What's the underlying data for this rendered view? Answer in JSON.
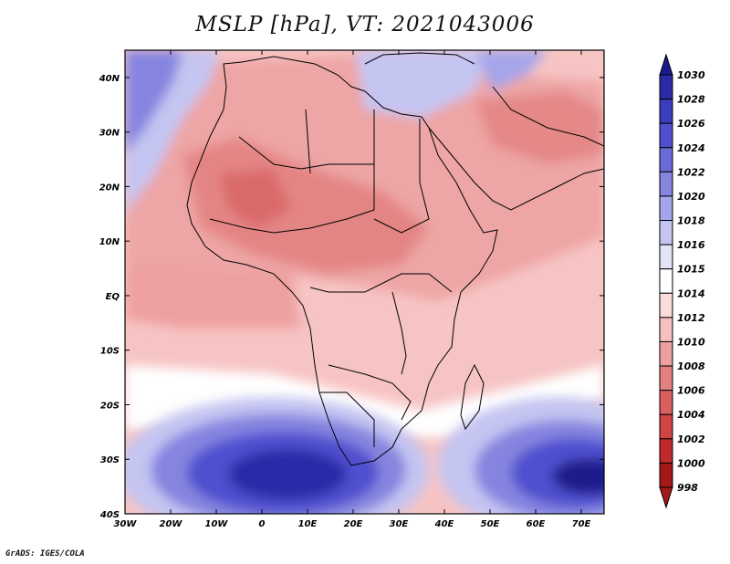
{
  "title": "MSLP [hPa], VT: 2021043006",
  "footer": "GrADS: IGES/COLA",
  "map": {
    "region": "Africa",
    "lon_range": [
      -30,
      75
    ],
    "lat_range": [
      -40,
      45
    ],
    "lon_ticks": [
      "30W",
      "20W",
      "10W",
      "0",
      "10E",
      "20E",
      "30E",
      "40E",
      "50E",
      "60E",
      "70E"
    ],
    "lat_ticks": [
      "40N",
      "30N",
      "20N",
      "10N",
      "EQ",
      "10S",
      "20S",
      "30S",
      "40S"
    ],
    "highs": [
      {
        "lon": 5,
        "lat": -34,
        "value": 1030
      },
      {
        "lon": 70,
        "lat": -34,
        "value": 1030
      }
    ]
  },
  "colorbar": {
    "labels": [
      "1030",
      "1028",
      "1026",
      "1024",
      "1022",
      "1020",
      "1018",
      "1016",
      "1015",
      "1014",
      "1012",
      "1010",
      "1008",
      "1006",
      "1004",
      "1002",
      "1000",
      "998"
    ],
    "colors": [
      "#1a1a8c",
      "#2b2ba8",
      "#3c3cbf",
      "#5050cf",
      "#6a6ad8",
      "#8585e0",
      "#a5a5ea",
      "#c5c5f2",
      "#e4e4f9",
      "#ffffff",
      "#fbdcdc",
      "#f6c0c0",
      "#eea0a0",
      "#e48080",
      "#da6060",
      "#cf4444",
      "#c02a2a",
      "#a31818"
    ]
  }
}
